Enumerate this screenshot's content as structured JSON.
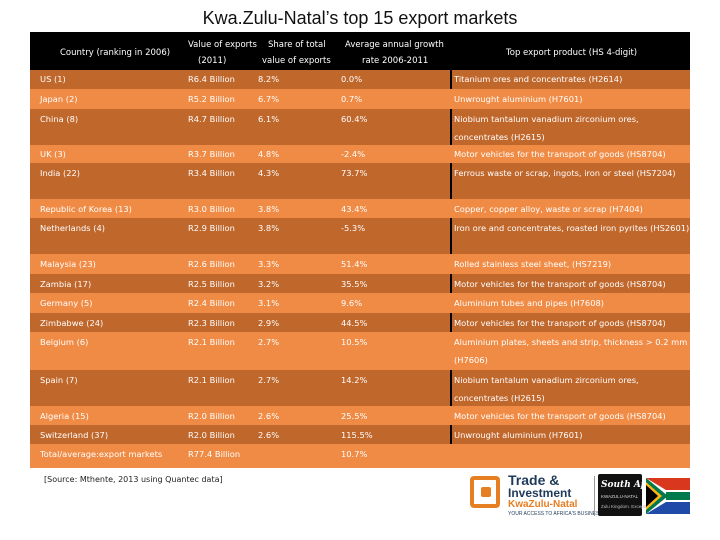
{
  "title": "Kwa.Zulu-Natal’s top 15 export markets",
  "header": {
    "country": "Country (ranking in 2006)",
    "value_l1": "Value of exports",
    "value_l2": "(2011)",
    "share_l1": "Share of total",
    "share_l2": "value of exports",
    "growth_l1": "Average annual growth",
    "growth_l2": "rate 2006-2011",
    "product": "Top export product (HS 4-digit)"
  },
  "rows": [
    {
      "country": "US (1)",
      "value": "R6.4 Billion",
      "share": "8.2%",
      "growth": "0.0%",
      "product": "Titanium ores and concentrates (H2614)"
    },
    {
      "country": "Japan (2)",
      "value": "R5.2 Billion",
      "share": "6.7%",
      "growth": "0.7%",
      "product": "Unwrought aluminium (H7601)"
    },
    {
      "country": "China (8)",
      "value": "R4.7 Billion",
      "share": "6.1%",
      "growth": "60.4%",
      "product": "Niobium tantalum vanadium zirconium ores, concentrates (H2615)"
    },
    {
      "country": "UK (3)",
      "value": "R3.7 Billion",
      "share": "4.8%",
      "growth": "-2.4%",
      "product": "Motor vehicles for the transport of goods (HS8704)"
    },
    {
      "country": "India (22)",
      "value": "R3.4 Billion",
      "share": "4.3%",
      "growth": "73.7%",
      "product": "Ferrous waste or scrap, ingots, iron or steel (HS7204)"
    },
    {
      "country": "Republic of Korea (13)",
      "value": "R3.0 Billion",
      "share": "3.8%",
      "growth": "43.4%",
      "product": "Copper, copper alloy, waste or scrap (H7404)"
    },
    {
      "country": "Netherlands (4)",
      "value": "R2.9 Billion",
      "share": "3.8%",
      "growth": "-5.3%",
      "product": "Iron ore and concentrates, roasted iron pyrites (HS2601)"
    },
    {
      "country": "Malaysia (23)",
      "value": "R2.6 Billion",
      "share": "3.3%",
      "growth": "51.4%",
      "product": "Rolled stainless steel sheet, (HS7219)"
    },
    {
      "country": "Zambia (17)",
      "value": "R2.5 Billion",
      "share": "3.2%",
      "growth": "35.5%",
      "product": "Motor vehicles for the transport of goods (HS8704)"
    },
    {
      "country": "Germany (5)",
      "value": "R2.4 Billion",
      "share": "3.1%",
      "growth": "9.6%",
      "product": "Aluminium tubes and pipes (H7608)"
    },
    {
      "country": "Zimbabwe (24)",
      "value": "R2.3 Billion",
      "share": "2.9%",
      "growth": "44.5%",
      "product": "Motor vehicles for the transport of goods (HS8704)"
    },
    {
      "country": "Belgium (6)",
      "value": "R2.1 Billion",
      "share": "2.7%",
      "growth": "10.5%",
      "product": "Aluminium plates, sheets and strip, thickness > 0.2 mm (H7606)"
    },
    {
      "country": "Spain (7)",
      "value": "R2.1 Billion",
      "share": "2.7%",
      "growth": "14.2%",
      "product": "Niobium tantalum vanadium zirconium ores, concentrates (H2615)"
    },
    {
      "country": "Algeria (15)",
      "value": "R2.0 Billion",
      "share": "2.6%",
      "growth": "25.5%",
      "product": "Motor vehicles for the transport of goods (HS8704)"
    },
    {
      "country": "Switzerland (37)",
      "value": "R2.0 Billion",
      "share": "2.6%",
      "growth": "115.5%",
      "product": "Unwrought aluminium (H7601)"
    },
    {
      "country": "Total/average:export markets",
      "value": "R77.4 Billion",
      "share": "",
      "growth": "10.7%",
      "product": ""
    }
  ],
  "source": "[Source: Mthente, 2013 using Quantec data]",
  "logo": {
    "line1": "Trade &",
    "line2": "Investment",
    "line3": "KwaZulu-Natal",
    "tagline": "YOUR ACCESS TO AFRICA'S BUSINESS",
    "sa_title": "South Africa",
    "sa_sub": "KWAZULU-NATAL",
    "sa_slogan": "Zulu Kingdom. Exceptional"
  },
  "colors": {
    "row_dark": "#c0672c",
    "row_light": "#f08b45",
    "header_bg": "#000000",
    "brand_orange": "#e67e22",
    "brand_navy": "#1f3a5a"
  }
}
